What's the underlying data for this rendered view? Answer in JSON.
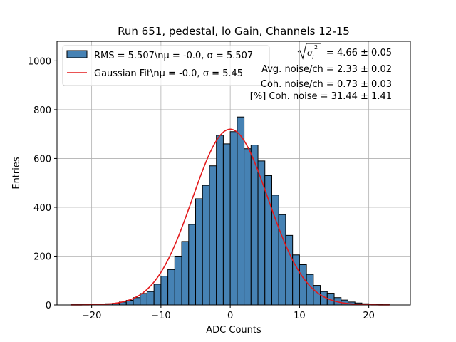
{
  "chart_data": {
    "type": "bar",
    "title": "Run 651, pedestal, lo Gain, Channels 12-15",
    "xlabel": "ADC Counts",
    "ylabel": "Entries",
    "xlim": [
      -25,
      26
    ],
    "ylim": [
      0,
      1080
    ],
    "xticks": [
      -20,
      -10,
      0,
      10,
      20
    ],
    "yticks": [
      0,
      200,
      400,
      600,
      800,
      1000
    ],
    "grid": true,
    "legend_position": "top-left",
    "histogram": {
      "name": "RMS = 5.507\\nμ = -0.0, σ = 5.507",
      "color": "#4682b4",
      "edge_color": "#000000",
      "bin_edges": [
        -23,
        -22,
        -21,
        -20,
        -19,
        -18,
        -17,
        -16,
        -15,
        -14,
        -13,
        -12,
        -11,
        -10,
        -9,
        -8,
        -7,
        -6,
        -5,
        -4,
        -3,
        -2,
        -1,
        0,
        1,
        2,
        3,
        4,
        5,
        6,
        7,
        8,
        9,
        10,
        11,
        12,
        13,
        14,
        15,
        16,
        17,
        18,
        19,
        20,
        21,
        22,
        23
      ],
      "counts": [
        1,
        1,
        1,
        2,
        3,
        5,
        7,
        12,
        19,
        30,
        47,
        55,
        85,
        118,
        145,
        200,
        260,
        330,
        435,
        490,
        570,
        695,
        660,
        710,
        770,
        640,
        655,
        590,
        530,
        450,
        370,
        285,
        205,
        165,
        125,
        80,
        55,
        48,
        30,
        20,
        12,
        8,
        5,
        3,
        2,
        1
      ]
    },
    "fit": {
      "name": "Gaussian Fit\\nμ = -0.0, σ = 5.45",
      "color": "#e31a1c",
      "mu": 0.0,
      "sigma": 5.45,
      "amplitude": 720,
      "x_range": [
        -23,
        23
      ]
    },
    "annotations": [
      {
        "value": " = 4.66 ± 0.05",
        "has_sqrt": true
      },
      {
        "value": "Avg. noise/ch = 2.33 ± 0.02"
      },
      {
        "value": "Coh. noise/ch = 0.73 ± 0.03"
      },
      {
        "value": "[%] Coh. noise = 31.44 ± 1.41"
      }
    ]
  }
}
